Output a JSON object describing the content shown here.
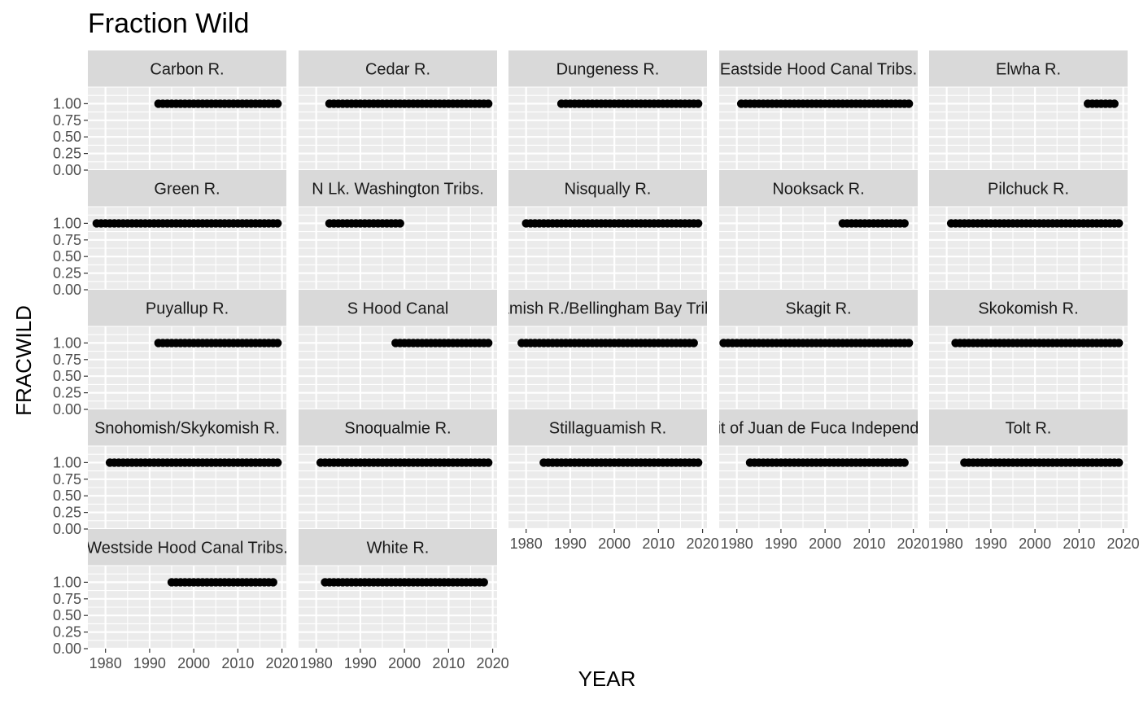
{
  "chart_data": {
    "type": "scatter",
    "title": "Fraction Wild",
    "xlabel": "YEAR",
    "ylabel": "FRACWILD",
    "facet_layout": "wrap",
    "ncol": 5,
    "xlim": [
      1976,
      2021
    ],
    "ylim": [
      0,
      1.25
    ],
    "x_ticks": [
      1980,
      1990,
      2000,
      2010,
      2020
    ],
    "y_ticks": [
      0.0,
      0.25,
      0.5,
      0.75,
      1.0
    ],
    "y_tick_labels": [
      "0.00",
      "0.25",
      "0.50",
      "0.75",
      "1.00"
    ],
    "x_tick_labels": [
      "1980",
      "1990",
      "2000",
      "2010",
      "2020"
    ],
    "grid": true,
    "background": "#ebebeb",
    "strip_background": "#d9d9d9",
    "point_color": "#000000",
    "panels": [
      {
        "name": "Carbon R.",
        "year_start": 1992,
        "year_end": 2019,
        "value": 1.0
      },
      {
        "name": "Cedar R.",
        "year_start": 1983,
        "year_end": 2019,
        "value": 1.0
      },
      {
        "name": "Dungeness R.",
        "year_start": 1988,
        "year_end": 2019,
        "value": 1.0
      },
      {
        "name": "Eastside Hood Canal Tribs.",
        "year_start": 1981,
        "year_end": 2019,
        "value": 1.0
      },
      {
        "name": "Elwha R.",
        "year_start": 2012,
        "year_end": 2018,
        "value": 1.0
      },
      {
        "name": "Green R.",
        "year_start": 1978,
        "year_end": 2019,
        "value": 1.0
      },
      {
        "name": "N Lk. Washington Tribs.",
        "year_start": 1983,
        "year_end": 1999,
        "value": 1.0
      },
      {
        "name": "Nisqually R.",
        "year_start": 1980,
        "year_end": 2019,
        "value": 1.0
      },
      {
        "name": "Nooksack R.",
        "year_start": 2004,
        "year_end": 2018,
        "value": 1.0
      },
      {
        "name": "Pilchuck R.",
        "year_start": 1981,
        "year_end": 2019,
        "value": 1.0
      },
      {
        "name": "Puyallup R.",
        "year_start": 1992,
        "year_end": 2019,
        "value": 1.0
      },
      {
        "name": "S Hood Canal",
        "year_start": 1998,
        "year_end": 2019,
        "value": 1.0
      },
      {
        "name": "Samish R./Bellingham Bay Tribs.",
        "year_start": 1979,
        "year_end": 2018,
        "value": 1.0
      },
      {
        "name": "Skagit R.",
        "year_start": 1977,
        "year_end": 2019,
        "value": 1.0
      },
      {
        "name": "Skokomish R.",
        "year_start": 1982,
        "year_end": 2019,
        "value": 1.0
      },
      {
        "name": "Snohomish/Skykomish R.",
        "year_start": 1981,
        "year_end": 2019,
        "value": 1.0
      },
      {
        "name": "Snoqualmie R.",
        "year_start": 1981,
        "year_end": 2019,
        "value": 1.0
      },
      {
        "name": "Stillaguamish R.",
        "year_start": 1984,
        "year_end": 2019,
        "value": 1.0
      },
      {
        "name": "Strait of Juan de Fuca Independents",
        "year_start": 1983,
        "year_end": 2018,
        "value": 1.0
      },
      {
        "name": "Tolt R.",
        "year_start": 1984,
        "year_end": 2019,
        "value": 1.0
      },
      {
        "name": "Westside Hood Canal Tribs.",
        "year_start": 1995,
        "year_end": 2018,
        "value": 1.0
      },
      {
        "name": "White R.",
        "year_start": 1982,
        "year_end": 2018,
        "value": 1.0
      }
    ]
  }
}
